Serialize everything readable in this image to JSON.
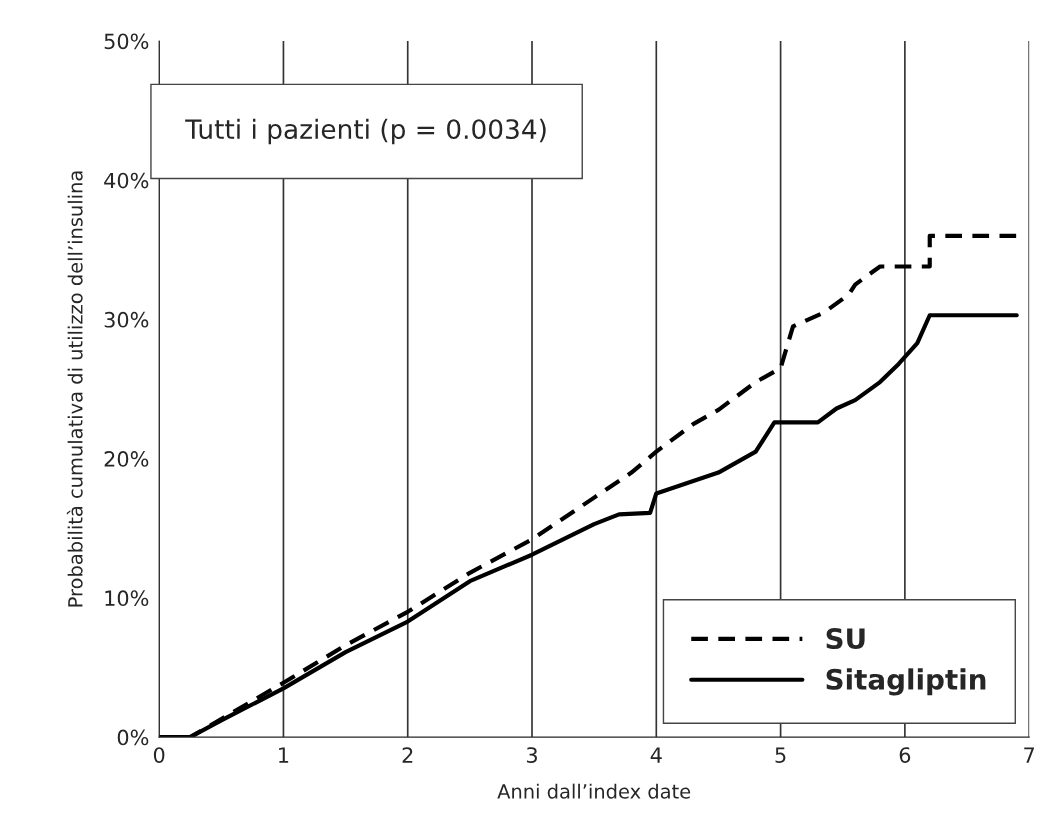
{
  "chart_data": {
    "type": "line",
    "xlabel": "Anni dall’index date",
    "ylabel": "Probabilità cumulativa di utilizzo dell’insulina",
    "annotations": [
      "Tutti i pazienti (p = 0.0034)"
    ],
    "xlim": [
      0,
      7
    ],
    "xticks": [
      0,
      1,
      2,
      3,
      4,
      5,
      6,
      7
    ],
    "ylim": [
      0,
      50
    ],
    "yticks": [
      {
        "value": 0,
        "label": "0%"
      },
      {
        "value": 10,
        "label": "10%"
      },
      {
        "value": 20,
        "label": "20%"
      },
      {
        "value": 30,
        "label": "30%"
      },
      {
        "value": 40,
        "label": "40%"
      },
      {
        "value": 50,
        "label": "50%"
      }
    ],
    "grid": "x",
    "legend": "bottom right",
    "series": [
      {
        "name": "SU",
        "color": "#000000",
        "line_style": "dashed",
        "x": [
          0,
          0.25,
          0.5,
          1,
          1.5,
          2,
          2.5,
          3,
          3.5,
          3.8,
          4,
          4.3,
          4.5,
          4.8,
          5.0,
          5.1,
          5.35,
          5.55,
          5.6,
          5.8,
          6.0,
          6.2,
          6.2,
          6.9
        ],
        "values": [
          0,
          0,
          1.3,
          3.9,
          6.6,
          9.0,
          11.8,
          14.2,
          17.2,
          19,
          20.5,
          22.5,
          23.5,
          25.5,
          26.5,
          29.5,
          30.5,
          31.8,
          32.5,
          33.8,
          33.8,
          33.8,
          36,
          36
        ]
      },
      {
        "name": "Sitagliptin",
        "color": "#000000",
        "line_style": "solid",
        "x": [
          0,
          0.25,
          0.5,
          1,
          1.5,
          2,
          2.5,
          3,
          3.5,
          3.7,
          3.95,
          4.0,
          4.5,
          4.8,
          4.95,
          5.3,
          5.45,
          5.6,
          5.8,
          5.95,
          6.1,
          6.2,
          6.9
        ],
        "values": [
          0,
          0,
          1.2,
          3.5,
          6.1,
          8.3,
          11.2,
          13.1,
          15.3,
          16.0,
          16.1,
          17.5,
          19,
          20.5,
          22.6,
          22.6,
          23.6,
          24.2,
          25.5,
          26.8,
          28.3,
          30.3,
          30.3
        ]
      }
    ]
  }
}
